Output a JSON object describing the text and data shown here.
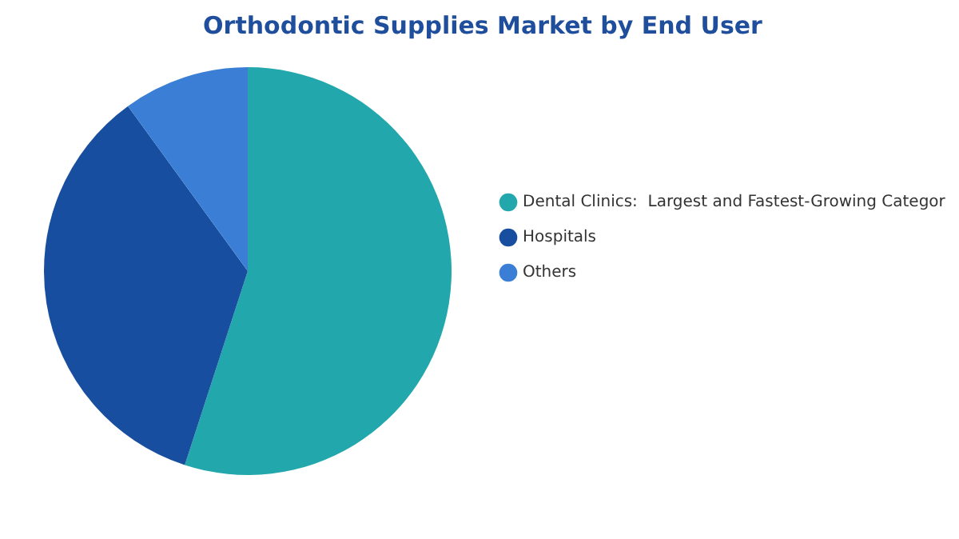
{
  "chart_data": {
    "type": "pie",
    "title": "Orthodontic Supplies Market by End User",
    "categories": [
      "Dental Clinics:  Largest and Fastest-Growing Categor",
      "Hospitals",
      "Others"
    ],
    "values": [
      55,
      35,
      10
    ],
    "colors": [
      "#21a7ac",
      "#174ea0",
      "#3a7fd5"
    ],
    "legend": "right"
  }
}
